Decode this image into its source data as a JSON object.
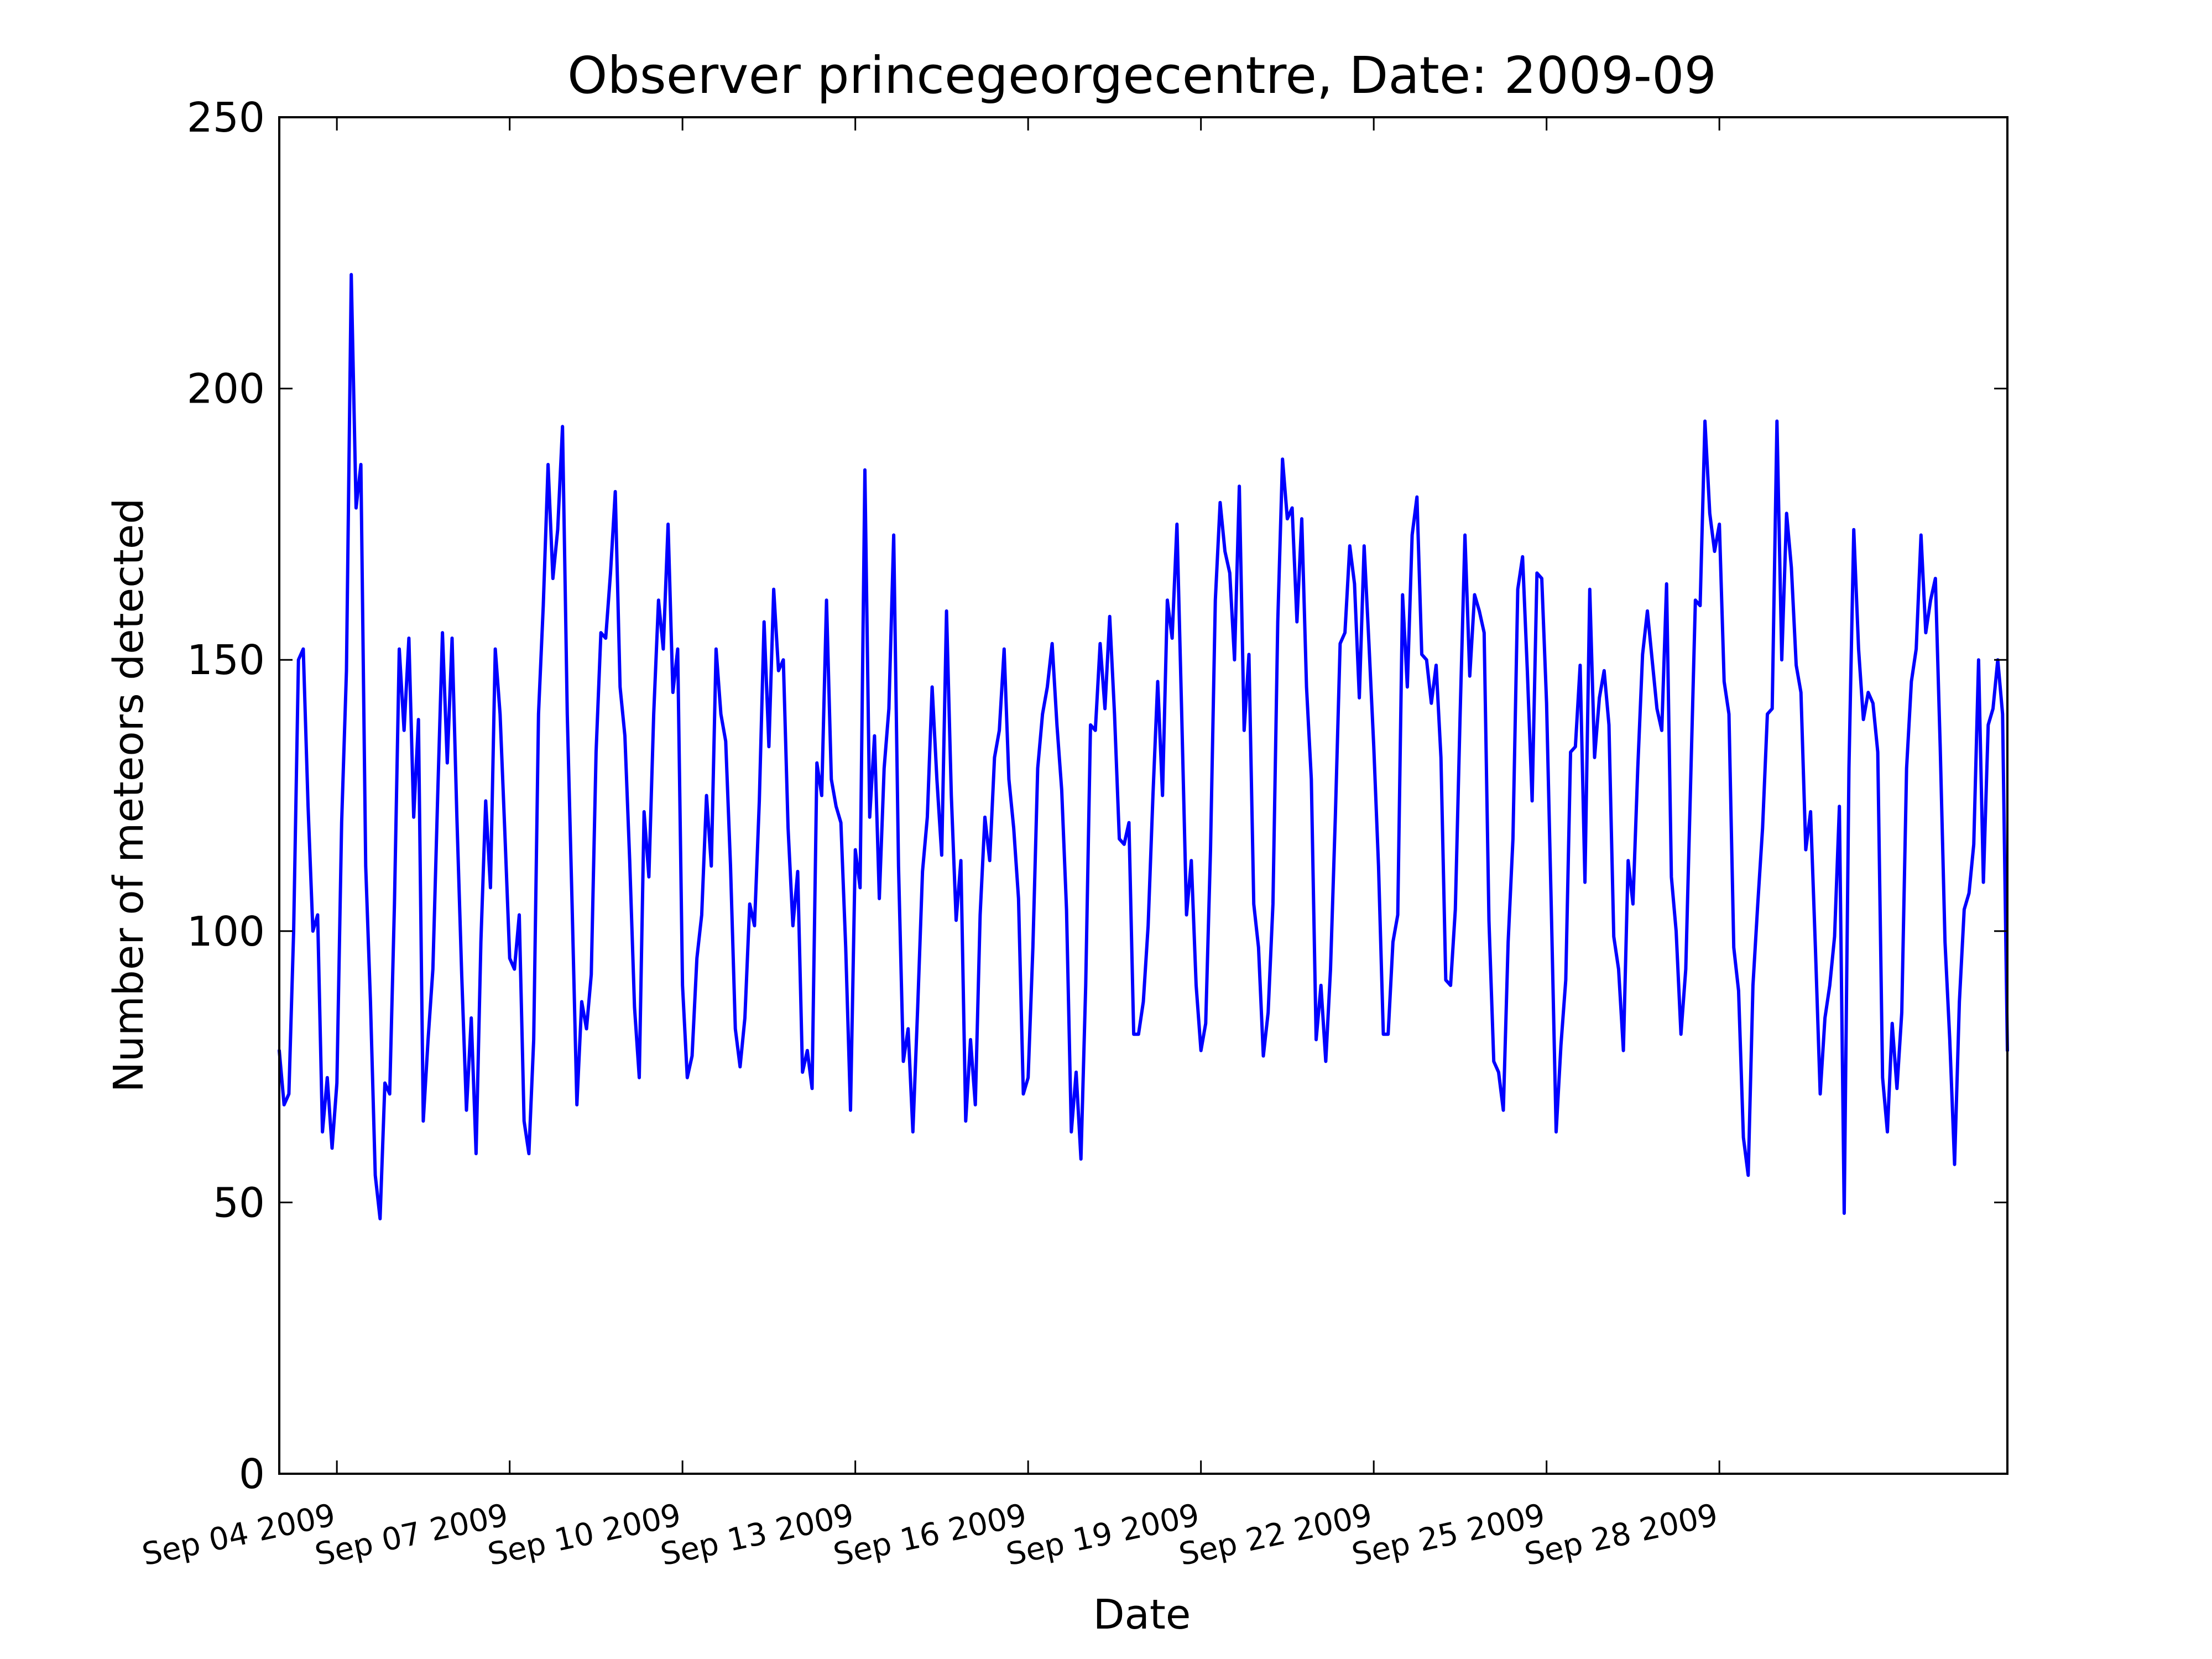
{
  "chart_data": {
    "type": "line",
    "title": "Observer princegeorgecentre, Date: 2009-09",
    "xlabel": "Date",
    "ylabel": "Number of meteors detected",
    "ylim": [
      0,
      250
    ],
    "xlim": [
      "2009-09-03",
      "2009-10-03"
    ],
    "grid": false,
    "legend": "none",
    "x_ticks": [
      "Sep 04 2009",
      "Sep 07 2009",
      "Sep 10 2009",
      "Sep 13 2009",
      "Sep 16 2009",
      "Sep 19 2009",
      "Sep 22 2009",
      "Sep 25 2009",
      "Sep 28 2009"
    ],
    "y_ticks": [
      "0",
      "50",
      "100",
      "150",
      "200",
      "250"
    ],
    "line_color": "#0000ff",
    "series": [
      {
        "x": [
          "2009-09-03T00:00",
          "2009-09-03T02:00",
          "2009-09-03T04:00",
          "2009-09-03T06:00",
          "2009-09-03T08:00",
          "2009-09-03T10:00",
          "2009-09-03T12:00",
          "2009-09-03T14:00",
          "2009-09-03T16:00",
          "2009-09-03T18:00",
          "2009-09-03T20:00",
          "2009-09-03T22:00",
          "2009-09-04T00:00",
          "2009-09-04T02:00",
          "2009-09-04T04:00",
          "2009-09-04T06:00",
          "2009-09-04T08:00",
          "2009-09-04T10:00",
          "2009-09-04T12:00",
          "2009-09-04T14:00",
          "2009-09-04T16:00",
          "2009-09-04T18:00",
          "2009-09-04T20:00",
          "2009-09-04T22:00",
          "2009-09-05T00:00",
          "2009-09-05T02:00",
          "2009-09-05T04:00",
          "2009-09-05T06:00",
          "2009-09-05T08:00",
          "2009-09-05T10:00",
          "2009-09-05T12:00",
          "2009-09-05T14:00",
          "2009-09-05T16:00",
          "2009-09-05T18:00",
          "2009-09-05T20:00",
          "2009-09-05T22:00",
          "2009-09-06T00:00",
          "2009-09-06T02:00",
          "2009-09-06T04:00",
          "2009-09-06T06:00",
          "2009-09-06T08:00",
          "2009-09-06T10:00",
          "2009-09-06T12:00",
          "2009-09-06T14:00",
          "2009-09-06T16:00",
          "2009-09-06T18:00",
          "2009-09-06T20:00",
          "2009-09-06T22:00",
          "2009-09-07T00:00",
          "2009-09-07T02:00",
          "2009-09-07T04:00",
          "2009-09-07T06:00",
          "2009-09-07T08:00",
          "2009-09-07T10:00",
          "2009-09-07T12:00",
          "2009-09-07T14:00",
          "2009-09-07T16:00",
          "2009-09-07T18:00",
          "2009-09-07T20:00",
          "2009-09-07T22:00",
          "2009-09-08T00:00",
          "2009-09-08T02:00",
          "2009-09-08T04:00",
          "2009-09-08T06:00",
          "2009-09-08T08:00",
          "2009-09-08T10:00",
          "2009-09-08T12:00",
          "2009-09-08T14:00",
          "2009-09-08T16:00",
          "2009-09-08T18:00",
          "2009-09-08T20:00",
          "2009-09-08T22:00",
          "2009-09-09T00:00",
          "2009-09-09T02:00",
          "2009-09-09T04:00",
          "2009-09-09T06:00",
          "2009-09-09T08:00",
          "2009-09-09T10:00",
          "2009-09-09T12:00",
          "2009-09-09T14:00",
          "2009-09-09T16:00",
          "2009-09-09T18:00",
          "2009-09-09T20:00",
          "2009-09-09T22:00",
          "2009-09-10T00:00",
          "2009-09-10T02:00",
          "2009-09-10T04:00",
          "2009-09-10T06:00",
          "2009-09-10T08:00",
          "2009-09-10T10:00",
          "2009-09-10T12:00",
          "2009-09-10T14:00",
          "2009-09-10T16:00",
          "2009-09-10T18:00",
          "2009-09-10T20:00",
          "2009-09-10T22:00",
          "2009-09-11T00:00",
          "2009-09-11T02:00",
          "2009-09-11T04:00",
          "2009-09-11T06:00",
          "2009-09-11T08:00",
          "2009-09-11T10:00",
          "2009-09-11T12:00",
          "2009-09-11T14:00",
          "2009-09-11T16:00",
          "2009-09-11T18:00",
          "2009-09-11T20:00",
          "2009-09-11T22:00",
          "2009-09-12T00:00",
          "2009-09-12T02:00",
          "2009-09-12T04:00",
          "2009-09-12T06:00",
          "2009-09-12T08:00",
          "2009-09-12T10:00",
          "2009-09-12T12:00",
          "2009-09-12T14:00",
          "2009-09-12T16:00",
          "2009-09-12T18:00",
          "2009-09-12T20:00",
          "2009-09-12T22:00",
          "2009-09-13T00:00",
          "2009-09-13T02:00",
          "2009-09-13T04:00",
          "2009-09-13T06:00",
          "2009-09-13T08:00",
          "2009-09-13T10:00",
          "2009-09-13T12:00",
          "2009-09-13T14:00",
          "2009-09-13T16:00",
          "2009-09-13T18:00",
          "2009-09-13T20:00",
          "2009-09-13T22:00",
          "2009-09-14T00:00",
          "2009-09-14T02:00",
          "2009-09-14T04:00",
          "2009-09-14T06:00",
          "2009-09-14T08:00",
          "2009-09-14T10:00",
          "2009-09-14T12:00",
          "2009-09-14T14:00",
          "2009-09-14T16:00",
          "2009-09-14T18:00",
          "2009-09-14T20:00",
          "2009-09-14T22:00",
          "2009-09-15T00:00",
          "2009-09-15T02:00",
          "2009-09-15T04:00",
          "2009-09-15T06:00",
          "2009-09-15T08:00",
          "2009-09-15T10:00",
          "2009-09-15T12:00",
          "2009-09-15T14:00",
          "2009-09-15T16:00",
          "2009-09-15T18:00",
          "2009-09-15T20:00",
          "2009-09-15T22:00",
          "2009-09-16T00:00",
          "2009-09-16T02:00",
          "2009-09-16T04:00",
          "2009-09-16T06:00",
          "2009-09-16T08:00",
          "2009-09-16T10:00",
          "2009-09-16T12:00",
          "2009-09-16T14:00",
          "2009-09-16T16:00",
          "2009-09-16T18:00",
          "2009-09-16T20:00",
          "2009-09-16T22:00",
          "2009-09-17T00:00",
          "2009-09-17T02:00",
          "2009-09-17T04:00",
          "2009-09-17T06:00",
          "2009-09-17T08:00",
          "2009-09-17T10:00",
          "2009-09-17T12:00",
          "2009-09-17T14:00",
          "2009-09-17T16:00",
          "2009-09-17T18:00",
          "2009-09-17T20:00",
          "2009-09-17T22:00",
          "2009-09-18T00:00",
          "2009-09-18T02:00",
          "2009-09-18T04:00",
          "2009-09-18T06:00",
          "2009-09-18T08:00",
          "2009-09-18T10:00",
          "2009-09-18T12:00",
          "2009-09-18T14:00",
          "2009-09-18T16:00",
          "2009-09-18T18:00",
          "2009-09-18T20:00",
          "2009-09-18T22:00",
          "2009-09-19T00:00",
          "2009-09-19T02:00",
          "2009-09-19T04:00",
          "2009-09-19T06:00",
          "2009-09-19T08:00",
          "2009-09-19T10:00",
          "2009-09-19T12:00",
          "2009-09-19T14:00",
          "2009-09-19T16:00",
          "2009-09-19T18:00",
          "2009-09-19T20:00",
          "2009-09-19T22:00",
          "2009-09-20T00:00",
          "2009-09-20T02:00",
          "2009-09-20T04:00",
          "2009-09-20T06:00",
          "2009-09-20T08:00",
          "2009-09-20T10:00",
          "2009-09-20T12:00",
          "2009-09-20T14:00",
          "2009-09-20T16:00",
          "2009-09-20T18:00",
          "2009-09-20T20:00",
          "2009-09-20T22:00",
          "2009-09-21T00:00",
          "2009-09-21T02:00",
          "2009-09-21T04:00",
          "2009-09-21T06:00",
          "2009-09-21T08:00",
          "2009-09-21T10:00",
          "2009-09-21T12:00",
          "2009-09-21T14:00",
          "2009-09-21T16:00",
          "2009-09-21T18:00",
          "2009-09-21T20:00",
          "2009-09-21T22:00",
          "2009-09-22T00:00",
          "2009-09-22T02:00",
          "2009-09-22T04:00",
          "2009-09-22T06:00",
          "2009-09-22T08:00",
          "2009-09-22T10:00",
          "2009-09-22T12:00",
          "2009-09-22T14:00",
          "2009-09-22T16:00",
          "2009-09-22T18:00",
          "2009-09-22T20:00",
          "2009-09-22T22:00",
          "2009-09-23T00:00",
          "2009-09-23T02:00",
          "2009-09-23T04:00",
          "2009-09-23T06:00",
          "2009-09-23T08:00",
          "2009-09-23T10:00",
          "2009-09-23T12:00",
          "2009-09-23T14:00",
          "2009-09-23T16:00",
          "2009-09-23T18:00",
          "2009-09-23T20:00",
          "2009-09-23T22:00",
          "2009-09-24T00:00",
          "2009-09-24T02:00",
          "2009-09-24T04:00",
          "2009-09-24T06:00",
          "2009-09-24T08:00",
          "2009-09-24T10:00",
          "2009-09-24T12:00",
          "2009-09-24T14:00",
          "2009-09-24T16:00",
          "2009-09-24T18:00",
          "2009-09-24T20:00",
          "2009-09-24T22:00",
          "2009-09-25T00:00",
          "2009-09-25T02:00",
          "2009-09-25T04:00",
          "2009-09-25T06:00",
          "2009-09-25T08:00",
          "2009-09-25T10:00",
          "2009-09-25T12:00",
          "2009-09-25T14:00",
          "2009-09-25T16:00",
          "2009-09-25T18:00",
          "2009-09-25T20:00",
          "2009-09-25T22:00",
          "2009-09-26T00:00",
          "2009-09-26T02:00",
          "2009-09-26T04:00",
          "2009-09-26T06:00",
          "2009-09-26T08:00",
          "2009-09-26T10:00",
          "2009-09-26T12:00",
          "2009-09-26T14:00",
          "2009-09-26T16:00",
          "2009-09-26T18:00",
          "2009-09-26T20:00",
          "2009-09-26T22:00",
          "2009-09-27T00:00",
          "2009-09-27T02:00",
          "2009-09-27T04:00",
          "2009-09-27T06:00",
          "2009-09-27T08:00",
          "2009-09-27T10:00",
          "2009-09-27T12:00",
          "2009-09-27T14:00",
          "2009-09-27T16:00",
          "2009-09-27T18:00",
          "2009-09-27T20:00",
          "2009-09-27T22:00",
          "2009-09-28T00:00",
          "2009-09-28T02:00",
          "2009-09-28T04:00",
          "2009-09-28T06:00",
          "2009-09-28T08:00",
          "2009-09-28T10:00",
          "2009-09-28T12:00",
          "2009-09-28T14:00",
          "2009-09-28T16:00",
          "2009-09-28T18:00",
          "2009-09-28T20:00",
          "2009-09-28T22:00",
          "2009-09-29T00:00",
          "2009-09-29T02:00",
          "2009-09-29T04:00",
          "2009-09-29T06:00",
          "2009-09-29T08:00",
          "2009-09-29T10:00",
          "2009-09-29T12:00",
          "2009-09-29T14:00",
          "2009-09-29T16:00",
          "2009-09-29T18:00",
          "2009-09-29T20:00",
          "2009-09-29T22:00",
          "2009-09-30T00:00",
          "2009-09-30T02:00",
          "2009-09-30T04:00",
          "2009-09-30T06:00",
          "2009-09-30T08:00",
          "2009-09-30T10:00",
          "2009-09-30T12:00",
          "2009-09-30T14:00",
          "2009-09-30T16:00",
          "2009-09-30T18:00",
          "2009-09-30T20:00",
          "2009-09-30T22:00",
          "2009-10-01T00:00",
          "2009-10-01T02:00",
          "2009-10-01T04:00",
          "2009-10-01T06:00",
          "2009-10-01T08:00",
          "2009-10-01T10:00",
          "2009-10-01T12:00",
          "2009-10-01T14:00",
          "2009-10-01T16:00",
          "2009-10-01T18:00",
          "2009-10-01T20:00",
          "2009-10-01T22:00",
          "2009-10-02T00:00",
          "2009-10-02T02:00",
          "2009-10-02T04:00",
          "2009-10-02T06:00",
          "2009-10-02T08:00",
          "2009-10-02T10:00",
          "2009-10-02T12:00",
          "2009-10-02T14:00",
          "2009-10-02T16:00",
          "2009-10-02T18:00",
          "2009-10-02T20:00",
          "2009-10-02T22:00",
          "2009-10-03T00:00"
        ],
        "values": [
          78,
          68,
          70,
          100,
          150,
          152,
          123,
          100,
          103,
          63,
          73,
          60,
          72,
          120,
          148,
          221,
          178,
          186,
          112,
          87,
          55,
          47,
          72,
          70,
          105,
          152,
          137,
          154,
          121,
          139,
          65,
          80,
          93,
          125,
          155,
          131,
          154,
          121,
          92,
          67,
          84,
          59,
          98,
          124,
          108,
          152,
          140,
          118,
          95,
          93,
          103,
          65,
          59,
          80,
          140,
          160,
          186,
          165,
          174,
          193,
          140,
          105,
          68,
          87,
          82,
          92,
          133,
          155,
          154,
          166,
          181,
          145,
          136,
          113,
          86,
          73,
          122,
          110,
          140,
          161,
          152,
          175,
          144,
          152,
          90,
          73,
          77,
          95,
          103,
          125,
          112,
          152,
          140,
          135,
          112,
          82,
          75,
          84,
          105,
          101,
          124,
          157,
          134,
          163,
          148,
          150,
          119,
          101,
          111,
          74,
          78,
          71,
          131,
          125,
          161,
          128,
          123,
          120,
          97,
          67,
          115,
          108,
          185,
          121,
          136,
          106,
          130,
          141,
          173,
          112,
          76,
          82,
          63,
          86,
          111,
          121,
          145,
          128,
          114,
          159,
          125,
          102,
          113,
          65,
          80,
          68,
          103,
          121,
          113,
          132,
          137,
          152,
          128,
          119,
          106,
          70,
          73,
          97,
          130,
          140,
          145,
          153,
          138,
          126,
          104,
          63,
          74,
          58,
          90,
          138,
          137,
          153,
          141,
          158,
          140,
          117,
          116,
          120,
          81,
          81,
          87,
          101,
          125,
          146,
          125,
          161,
          154,
          175,
          140,
          103,
          113,
          90,
          78,
          83,
          115,
          161,
          179,
          170,
          166,
          150,
          182,
          137,
          151,
          105,
          97,
          77,
          85,
          105,
          157,
          187,
          176,
          178,
          157,
          176,
          145,
          128,
          80,
          90,
          76,
          93,
          121,
          153,
          155,
          171,
          164,
          143,
          171,
          153,
          134,
          112,
          81,
          81,
          98,
          103,
          162,
          145,
          173,
          180,
          151,
          150,
          142,
          149,
          132,
          91,
          90,
          104,
          140,
          173,
          147,
          162,
          159,
          155,
          102,
          76,
          74,
          67,
          98,
          117,
          163,
          169,
          148,
          124,
          166,
          165,
          142,
          104,
          63,
          79,
          91,
          133,
          134,
          149,
          109,
          163,
          132,
          143,
          148,
          138,
          99,
          93,
          78,
          113,
          105,
          130,
          151,
          159,
          150,
          141,
          137,
          164,
          110,
          100,
          81,
          93,
          127,
          161,
          160,
          194,
          177,
          170,
          175,
          146,
          140,
          97,
          89,
          62,
          55,
          90,
          105,
          119,
          140,
          141,
          194,
          150,
          177,
          167,
          149,
          144,
          115,
          122,
          97,
          70,
          84,
          90,
          99,
          123,
          48,
          130,
          174,
          152,
          139,
          144,
          142,
          133,
          73,
          63,
          83,
          71,
          85,
          130,
          146,
          152,
          173,
          155,
          161,
          165,
          134,
          98,
          80,
          57,
          87,
          104,
          107,
          116,
          150,
          109,
          138,
          141,
          150,
          140,
          78
        ]
      }
    ]
  }
}
